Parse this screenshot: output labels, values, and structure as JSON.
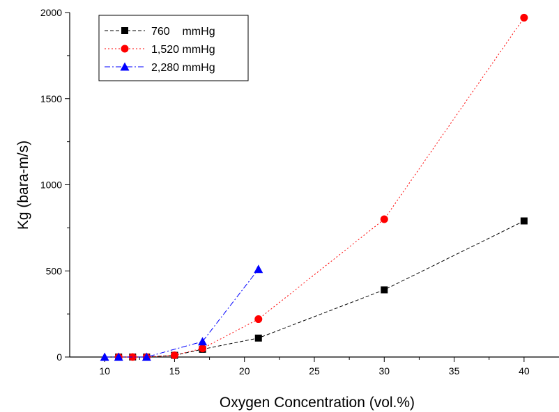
{
  "chart_data": {
    "type": "line",
    "title": "",
    "xlabel": "Oxygen Concentration (vol.%)",
    "ylabel": "Kg (bara-m/s)",
    "xlim": [
      7.5,
      42.5
    ],
    "ylim": [
      0,
      2000
    ],
    "xticks": [
      10,
      15,
      20,
      25,
      30,
      35,
      40
    ],
    "yticks": [
      0,
      500,
      1000,
      1500,
      2000
    ],
    "grid": false,
    "legend_position": "top-left",
    "series": [
      {
        "name": "760    mmHg",
        "marker": "square",
        "color": "#000000",
        "line_style": "dashed",
        "points": [
          {
            "x": 11,
            "y": 0
          },
          {
            "x": 12,
            "y": 0
          },
          {
            "x": 13,
            "y": 0
          },
          {
            "x": 15,
            "y": 10
          },
          {
            "x": 17,
            "y": 45
          },
          {
            "x": 21,
            "y": 110
          },
          {
            "x": 30,
            "y": 390
          },
          {
            "x": 40,
            "y": 790
          }
        ]
      },
      {
        "name": "1,520 mmHg",
        "marker": "circle",
        "color": "#ff0000",
        "line_style": "dotted",
        "points": [
          {
            "x": 11,
            "y": 0
          },
          {
            "x": 12,
            "y": 0
          },
          {
            "x": 13,
            "y": 0
          },
          {
            "x": 15,
            "y": 10
          },
          {
            "x": 17,
            "y": 50
          },
          {
            "x": 21,
            "y": 220
          },
          {
            "x": 30,
            "y": 800
          },
          {
            "x": 40,
            "y": 1970
          }
        ]
      },
      {
        "name": "2,280 mmHg",
        "marker": "triangle",
        "color": "#0000ff",
        "line_style": "dashdot",
        "points": [
          {
            "x": 10,
            "y": 0
          },
          {
            "x": 11,
            "y": 0
          },
          {
            "x": 13,
            "y": 0
          },
          {
            "x": 17,
            "y": 90
          },
          {
            "x": 21,
            "y": 510
          }
        ]
      }
    ]
  }
}
